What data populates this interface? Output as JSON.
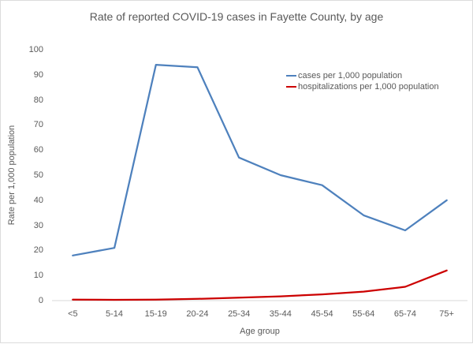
{
  "chart_data": {
    "type": "line",
    "title": "Rate of reported COVID-19 cases in Fayette County, by age",
    "xlabel": "Age group",
    "ylabel": "Rate per 1,000 population",
    "categories": [
      "<5",
      "5-14",
      "15-19",
      "20-24",
      "25-34",
      "35-44",
      "45-54",
      "55-64",
      "65-74",
      "75+"
    ],
    "series": [
      {
        "name": "cases per 1,000 population",
        "color": "#4e81bd",
        "values": [
          18,
          21,
          94,
          93,
          57,
          50,
          46,
          34,
          28,
          40
        ]
      },
      {
        "name": "hospitalizations per 1,000 population",
        "color": "#cc0000",
        "values": [
          0.4,
          0.3,
          0.4,
          0.7,
          1.2,
          1.7,
          2.5,
          3.6,
          5.5,
          12
        ]
      }
    ],
    "ylim": [
      0,
      100
    ],
    "yticks": [
      0,
      10,
      20,
      30,
      40,
      50,
      60,
      70,
      80,
      90,
      100
    ],
    "grid": false,
    "legend_position": "inside-top-right",
    "text_color": "#595959",
    "axis_line_color": "#d9d9d9"
  }
}
